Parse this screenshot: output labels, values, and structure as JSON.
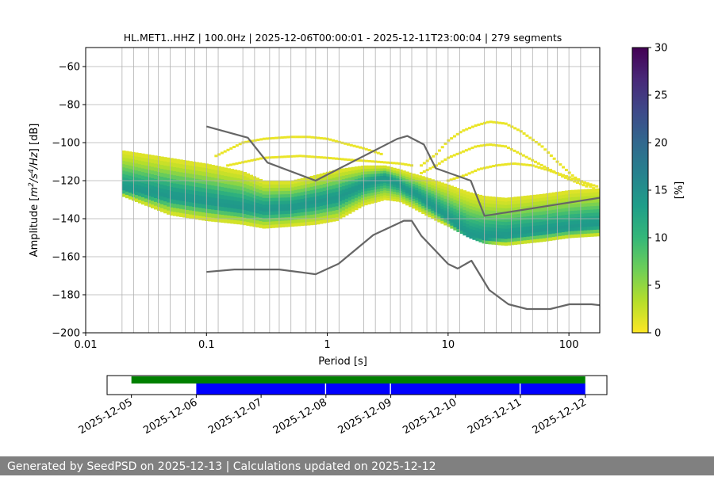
{
  "chart_data": {
    "type": "heatmap",
    "title": "HL.MET1..HHZ | 100.0Hz | 2025-12-06T00:00:01 - 2025-12-11T23:00:04 | 279 segments",
    "xlabel": "Period [s]",
    "ylabel_parts": [
      "Amplitude [",
      "m",
      "2",
      "/",
      "s",
      "4",
      "/",
      "Hz",
      "] [dB]"
    ],
    "x_scale": "log",
    "xlim": [
      0.01,
      180
    ],
    "ylim": [
      -200,
      -50
    ],
    "x_ticks": [
      0.01,
      0.1,
      1,
      10,
      100
    ],
    "x_tick_labels": [
      "0.01",
      "0.1",
      "1",
      "10",
      "100"
    ],
    "y_ticks": [
      -200,
      -180,
      -160,
      -140,
      -120,
      -100,
      -80,
      -60
    ],
    "y_tick_labels": [
      "−200",
      "−180",
      "−160",
      "−140",
      "−120",
      "−100",
      "−80",
      "−60"
    ],
    "period_gridlines": [
      0.02,
      0.025,
      0.0333,
      0.04,
      0.05,
      0.0667,
      0.08,
      0.1,
      0.125,
      0.2,
      0.25,
      0.333,
      0.4,
      0.5,
      0.667,
      0.8,
      1.0,
      1.25,
      2,
      2.5,
      3.33,
      4,
      5,
      6.67,
      8,
      10,
      12.5,
      20,
      25,
      33.3,
      40,
      50,
      66.7,
      80,
      100,
      125
    ],
    "grid": true,
    "colorbar": {
      "label": "[%]",
      "range": [
        0,
        30
      ],
      "ticks": [
        0,
        5,
        10,
        15,
        20,
        25,
        30
      ],
      "tick_labels": [
        "0",
        "5",
        "10",
        "15",
        "20",
        "25",
        "30"
      ],
      "colormap": [
        "#fde725",
        "#b5de2b",
        "#6ece58",
        "#35b779",
        "#1f9e89",
        "#26828e",
        "#31688e",
        "#3e4989",
        "#482878",
        "#440154"
      ]
    },
    "psd_mode": {
      "x": [
        0.02,
        0.05,
        0.1,
        0.2,
        0.3,
        0.5,
        0.8,
        1.2,
        2,
        3,
        4,
        4.6,
        5.5,
        6.2,
        8,
        10,
        12,
        15,
        20,
        30,
        50,
        100,
        180
      ],
      "y": [
        -124,
        -128,
        -131,
        -134,
        -135,
        -134,
        -131,
        -129,
        -122,
        -118,
        -122,
        -125,
        -127,
        -130,
        -135,
        -140,
        -144,
        -149,
        -150,
        -149,
        -147,
        -145,
        -143
      ]
    },
    "psd_spread": {
      "x": [
        0.02,
        0.05,
        0.1,
        0.2,
        0.3,
        0.5,
        0.8,
        1.2,
        2,
        3,
        4,
        5,
        6.5,
        8,
        10,
        15,
        20,
        30,
        60,
        100,
        180
      ],
      "lower": [
        -128,
        -138,
        -141,
        -143,
        -145,
        -144,
        -143,
        -141,
        -133,
        -130,
        -131,
        -134,
        -138,
        -141,
        -144,
        -150,
        -153,
        -154,
        -152,
        -150,
        -149
      ],
      "upper": [
        -104,
        -108,
        -111,
        -115,
        -120,
        -120,
        -117,
        -114,
        -112,
        -112,
        -114,
        -116,
        -118,
        -120,
        -122,
        -126,
        -128,
        -129,
        -127,
        -125,
        -124
      ]
    },
    "psd_scatter": [
      {
        "x": [
          0.12,
          0.2,
          0.3,
          0.5,
          0.7,
          1.0,
          1.5,
          2.0,
          2.8
        ],
        "y": [
          -107,
          -100,
          -98,
          -97,
          -97,
          -98,
          -101,
          -103,
          -106
        ]
      },
      {
        "x": [
          0.15,
          0.3,
          0.6,
          1.0,
          1.5,
          2.5,
          4,
          5
        ],
        "y": [
          -112,
          -108,
          -107,
          -108,
          -109,
          -110,
          -111,
          -112
        ]
      },
      {
        "x": [
          6,
          8,
          10,
          13,
          17,
          22,
          30,
          40,
          60,
          80,
          110,
          160
        ],
        "y": [
          -112,
          -106,
          -99,
          -94,
          -91,
          -89,
          -90,
          -94,
          -102,
          -110,
          -118,
          -124
        ]
      },
      {
        "x": [
          6,
          8,
          10,
          13,
          17,
          22,
          30,
          40,
          60,
          90,
          140
        ],
        "y": [
          -116,
          -112,
          -108,
          -105,
          -102,
          -101,
          -102,
          -106,
          -112,
          -118,
          -123
        ]
      },
      {
        "x": [
          10,
          14,
          18,
          25,
          35,
          50,
          80,
          120,
          170
        ],
        "y": [
          -120,
          -117,
          -114,
          -112,
          -111,
          -112,
          -116,
          -120,
          -123
        ]
      }
    ],
    "nhnm": {
      "x": [
        0.1,
        0.22,
        0.32,
        0.8,
        3.8,
        4.6,
        6.3,
        7.9,
        15.4,
        20,
        180
      ],
      "y": [
        -91.5,
        -97.4,
        -110.5,
        -120,
        -98,
        -96.5,
        -101,
        -113.5,
        -120,
        -138.5,
        -129
      ]
    },
    "nlnm": {
      "x": [
        0.1,
        0.17,
        0.4,
        0.8,
        1.24,
        2.4,
        4.3,
        5,
        6,
        10,
        12,
        15.6,
        21.9,
        31.6,
        45,
        70,
        101,
        154,
        180
      ],
      "y": [
        -168,
        -166.7,
        -166.7,
        -169.2,
        -163.7,
        -148.6,
        -141.1,
        -141.1,
        -149,
        -163.8,
        -166.2,
        -162.1,
        -177.5,
        -185,
        -187.5,
        -187.5,
        -185,
        -185,
        -185.5
      ]
    },
    "timeline": {
      "xlim": [
        "2025-12-04T15:00",
        "2025-12-12T08:00"
      ],
      "x_ticks": [
        "2025-12-05",
        "2025-12-06",
        "2025-12-07",
        "2025-12-08",
        "2025-12-09",
        "2025-12-10",
        "2025-12-11",
        "2025-12-12"
      ],
      "x_tick_labels": [
        "2025-12-05",
        "2025-12-06",
        "2025-12-07",
        "2025-12-08",
        "2025-12-09",
        "2025-12-10",
        "2025-12-11",
        "2025-12-12"
      ],
      "data_available": {
        "color": "#008000",
        "start": "2025-12-05T00:00",
        "end": "2025-12-12T00:00"
      },
      "psd_segments": {
        "color": "#0000ff",
        "ranges": [
          [
            "2025-12-06T00:00",
            "2025-12-07T23:40"
          ],
          [
            "2025-12-08T00:05",
            "2025-12-08T23:40"
          ],
          [
            "2025-12-09T00:05",
            "2025-12-10T23:40"
          ],
          [
            "2025-12-11T00:05",
            "2025-12-12T00:00"
          ]
        ]
      }
    }
  },
  "footer": {
    "text": "Generated by SeedPSD on 2025-12-13 | Calculations updated on 2025-12-12"
  }
}
